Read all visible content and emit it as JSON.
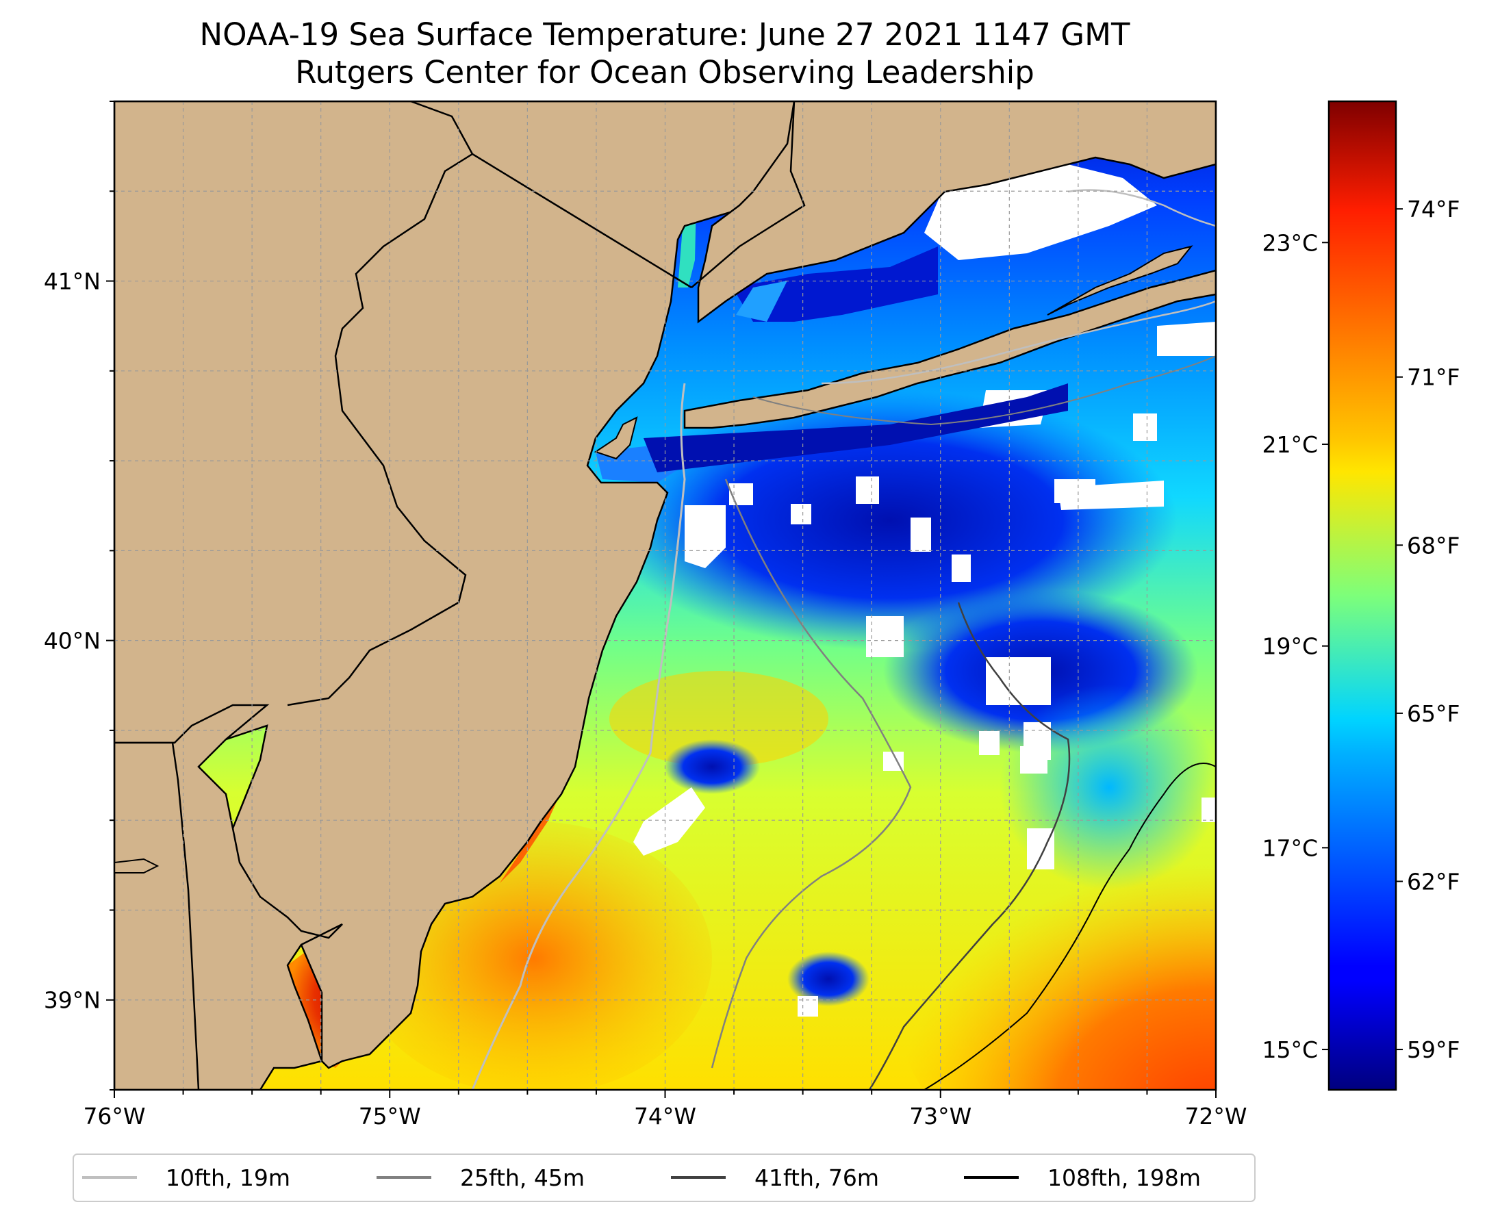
{
  "title": {
    "line1": "NOAA-19 Sea Surface Temperature: June 27 2021 1147 GMT",
    "line2": "Rutgers Center for Ocean Observing Leadership"
  },
  "map": {
    "lon_ticks": [
      "76°W",
      "75°W",
      "74°W",
      "73°W",
      "72°W"
    ],
    "lat_ticks": [
      "41°N",
      "40°N",
      "39°N"
    ],
    "extent": {
      "lon_min": -76,
      "lon_max": -72,
      "lat_min": 38.75,
      "lat_max": 41.5
    },
    "land_color": "#d2b48c",
    "nodata_color": "#ffffff",
    "gridlines": true
  },
  "colorbar": {
    "colormap": "jet",
    "celsius_ticks": [
      "23°C",
      "21°C",
      "19°C",
      "17°C",
      "15°C"
    ],
    "fahrenheit_ticks": [
      "74°F",
      "71°F",
      "68°F",
      "65°F",
      "62°F",
      "59°F"
    ],
    "range_celsius": [
      14.6,
      24.4
    ]
  },
  "legend": {
    "entries": [
      {
        "label": "10fth, 19m",
        "color": "#bfbfbf"
      },
      {
        "label": "25fth, 45m",
        "color": "#808080"
      },
      {
        "label": "41fth, 76m",
        "color": "#404040"
      },
      {
        "label": "108fth, 198m",
        "color": "#000000"
      }
    ]
  }
}
